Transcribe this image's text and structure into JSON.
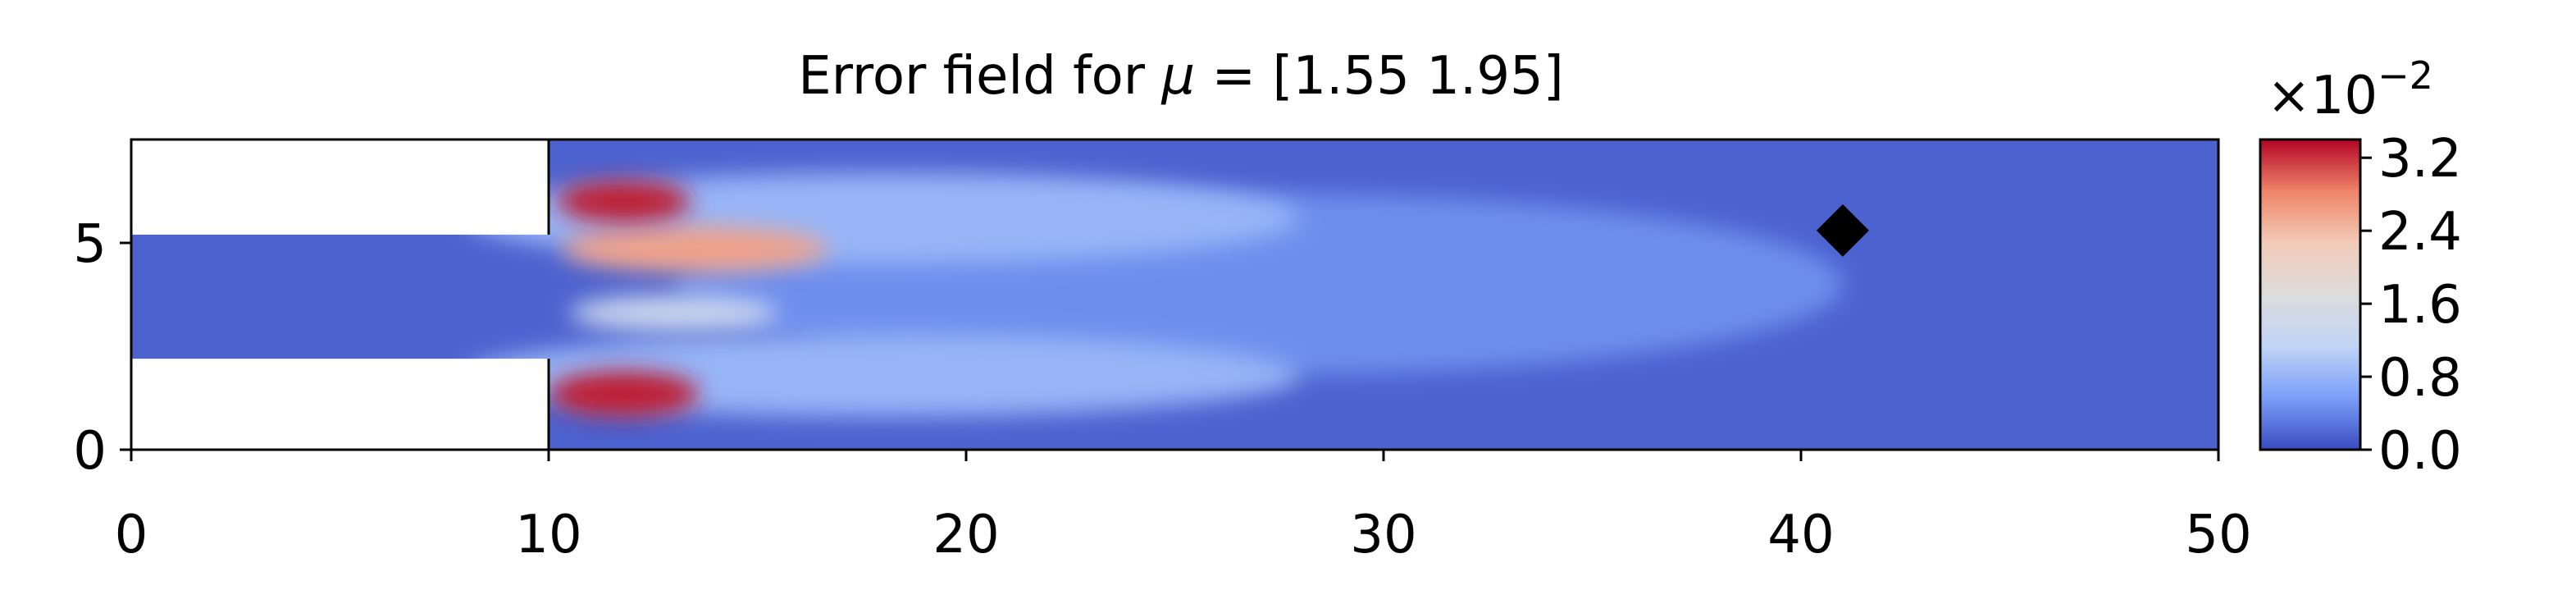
{
  "chart_data": {
    "type": "heatmap",
    "title_prefix": "Error field for ",
    "title_symbol": "μ",
    "title_suffix": " = [1.55 1.95]",
    "xlim": [
      0,
      50
    ],
    "ylim": [
      0,
      7.5
    ],
    "x_ticks": [
      0,
      10,
      20,
      30,
      40,
      50
    ],
    "x_tick_labels": [
      "0",
      "10",
      "20",
      "30",
      "40",
      "50"
    ],
    "y_ticks": [
      0,
      5
    ],
    "y_tick_labels": [
      "0",
      "5"
    ],
    "domain_cutouts": [
      {
        "x": [
          0,
          10
        ],
        "y": [
          5.2,
          7.5
        ]
      },
      {
        "x": [
          0,
          10
        ],
        "y": [
          0,
          2.2
        ]
      }
    ],
    "marker": {
      "shape": "diamond",
      "x": 41,
      "y": 5.3,
      "color": "#000000"
    },
    "colormap": "coolwarm",
    "colormap_stops": [
      "#3b4cc0",
      "#7b9ff9",
      "#c0d4f5",
      "#dddcdc",
      "#f2cbb7",
      "#ee8468",
      "#b40426"
    ],
    "colorbar": {
      "exponent_label_base": "×10",
      "exponent_label_power": "−2",
      "min": 0.0,
      "max": 3.4,
      "ticks": [
        0.0,
        0.8,
        1.6,
        2.4,
        3.2
      ],
      "tick_labels": [
        "0.0",
        "0.8",
        "1.6",
        "2.4",
        "3.2"
      ]
    },
    "hotspots": [
      {
        "x": 11.8,
        "y": 6.0,
        "rx": 1.6,
        "ry": 0.5,
        "value": 3.3
      },
      {
        "x": 13.5,
        "y": 4.85,
        "rx": 3.2,
        "ry": 0.55,
        "value": 2.6
      },
      {
        "x": 11.8,
        "y": 1.35,
        "rx": 1.8,
        "ry": 0.55,
        "value": 3.3
      },
      {
        "x": 13.0,
        "y": 3.3,
        "rx": 2.5,
        "ry": 0.45,
        "value": 1.3
      },
      {
        "x": 18.0,
        "y": 5.6,
        "rx": 10.0,
        "ry": 1.1,
        "value": 0.8
      },
      {
        "x": 18.0,
        "y": 1.8,
        "rx": 10.0,
        "ry": 1.0,
        "value": 0.8
      },
      {
        "x": 27.0,
        "y": 4.0,
        "rx": 14.0,
        "ry": 2.2,
        "value": 0.45
      }
    ],
    "background_value": 0.15
  }
}
